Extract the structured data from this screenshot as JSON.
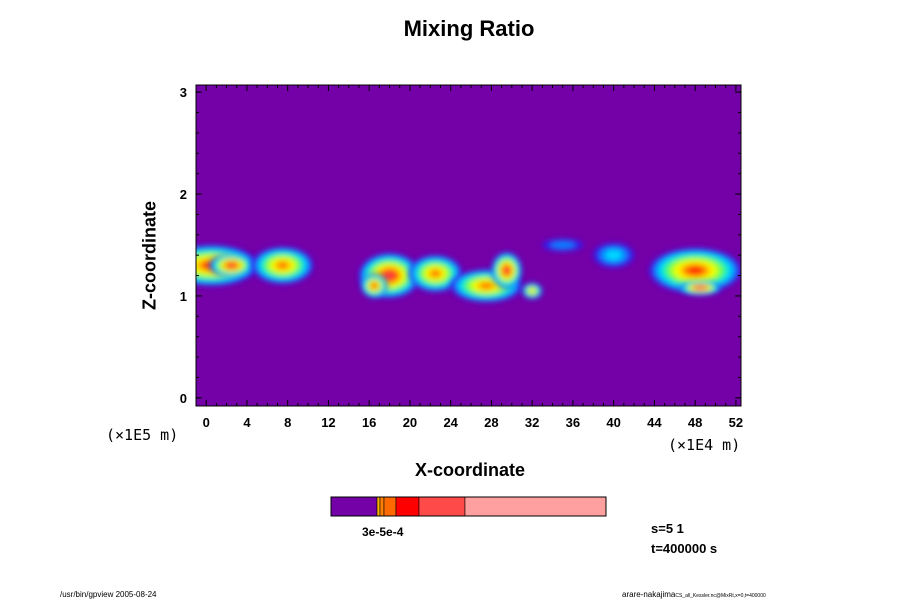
{
  "chart_data": {
    "type": "heatmap",
    "title": "Mixing Ratio",
    "xlabel": "X-coordinate",
    "ylabel": "Z-coordinate",
    "x_ticks": [
      "0",
      "4",
      "8",
      "12",
      "16",
      "20",
      "24",
      "28",
      "32",
      "36",
      "40",
      "44",
      "48",
      "52"
    ],
    "y_ticks": [
      "0",
      "1",
      "2",
      "3"
    ],
    "xlim": [
      -1,
      52.5
    ],
    "ylim": [
      -0.08,
      3.07
    ],
    "x_unit": "(×1E4 m)",
    "y_unit": "(×1E5 m)",
    "background_color": "#7400a8",
    "color_levels": [
      "#7400a8",
      "#2f1cf0",
      "#0080ff",
      "#00d8ff",
      "#18f0a0",
      "#60ff40",
      "#c8ff10",
      "#ffff00",
      "#ffb000",
      "#ff6000",
      "#ff1000",
      "#ff5050",
      "#ffa0a0"
    ],
    "colorbar_colors": [
      "#7400a8",
      "#f5b300",
      "#ff8000",
      "#ff6a00",
      "#ff0000",
      "#ff4a4a",
      "#ffa0a0"
    ],
    "colorbar_labels": "3e-5e-4",
    "regions": [
      {
        "x": 0.5,
        "z": 1.3,
        "rx": 4.5,
        "rz": 0.2,
        "level": 10
      },
      {
        "x": 2.5,
        "z": 1.3,
        "rx": 2.2,
        "rz": 0.12,
        "level": 11
      },
      {
        "x": 7.5,
        "z": 1.3,
        "rx": 3.0,
        "rz": 0.18,
        "level": 9
      },
      {
        "x": 18.0,
        "z": 1.2,
        "rx": 3.0,
        "rz": 0.22,
        "level": 11
      },
      {
        "x": 16.5,
        "z": 1.1,
        "rx": 1.3,
        "rz": 0.12,
        "level": 10
      },
      {
        "x": 22.5,
        "z": 1.22,
        "rx": 2.6,
        "rz": 0.18,
        "level": 9
      },
      {
        "x": 27.5,
        "z": 1.1,
        "rx": 3.5,
        "rz": 0.16,
        "level": 9
      },
      {
        "x": 29.5,
        "z": 1.25,
        "rx": 1.5,
        "rz": 0.18,
        "level": 11
      },
      {
        "x": 32.0,
        "z": 1.05,
        "rx": 1.0,
        "rz": 0.08,
        "level": 8
      },
      {
        "x": 35.0,
        "z": 1.5,
        "rx": 2.0,
        "rz": 0.06,
        "level": 2
      },
      {
        "x": 40.0,
        "z": 1.4,
        "rx": 2.0,
        "rz": 0.12,
        "level": 3
      },
      {
        "x": 48.0,
        "z": 1.25,
        "rx": 4.5,
        "rz": 0.22,
        "level": 10
      },
      {
        "x": 48.5,
        "z": 1.08,
        "rx": 2.0,
        "rz": 0.07,
        "level": 12
      }
    ],
    "stats": {
      "s": "s=5 1",
      "t": "t=400000 s"
    },
    "footer": {
      "left": "/usr/bin/gpview 2005-08-24",
      "right": "arare-nakajima",
      "right_small": "CS_all_Kessler.nc@MixRt,x=0,t=400000"
    }
  }
}
